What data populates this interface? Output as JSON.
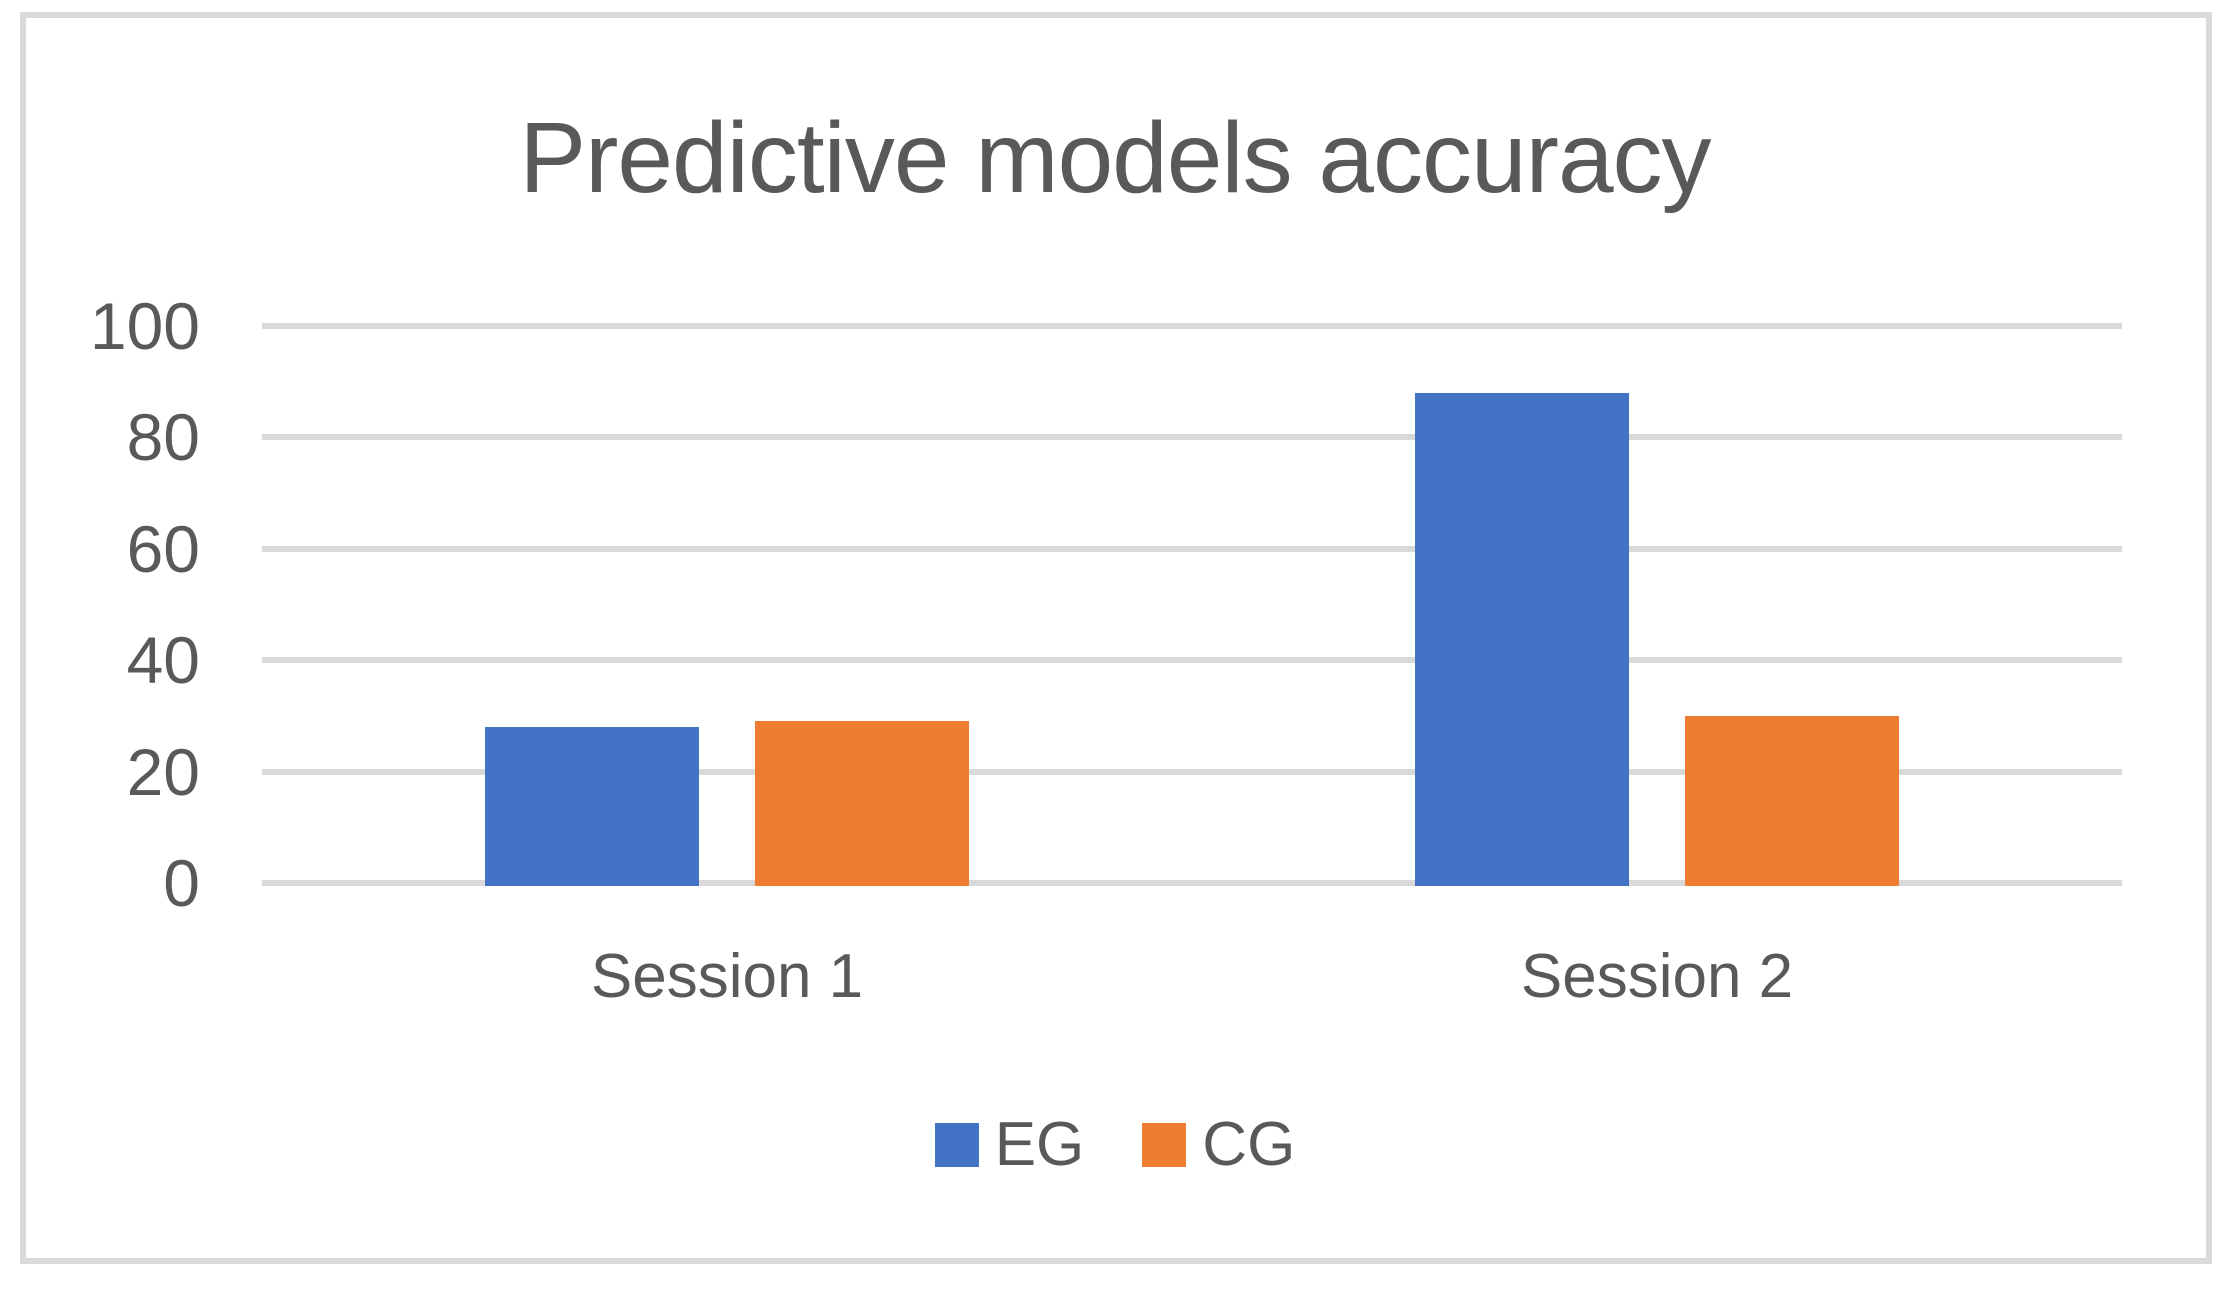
{
  "figure": {
    "title": "Predictive models accuracy"
  },
  "chart_data": {
    "type": "bar",
    "title": "Predictive models accuracy",
    "categories": [
      "Session 1",
      "Session 2"
    ],
    "series": [
      {
        "name": "EG",
        "color": "#4472C4",
        "values": [
          28,
          88
        ]
      },
      {
        "name": "CG",
        "color": "#ED7D31",
        "values": [
          29,
          30
        ]
      }
    ],
    "xlabel": "",
    "ylabel": "",
    "ylim": [
      0,
      100
    ],
    "yticks": [
      100,
      80,
      60,
      40,
      20,
      0
    ],
    "grid": true,
    "legend_position": "bottom-center",
    "colors": {
      "grid": "#D9D9D9",
      "text": "#595959",
      "frame_border": "#D9D9D9",
      "background": "#FFFFFF"
    }
  }
}
